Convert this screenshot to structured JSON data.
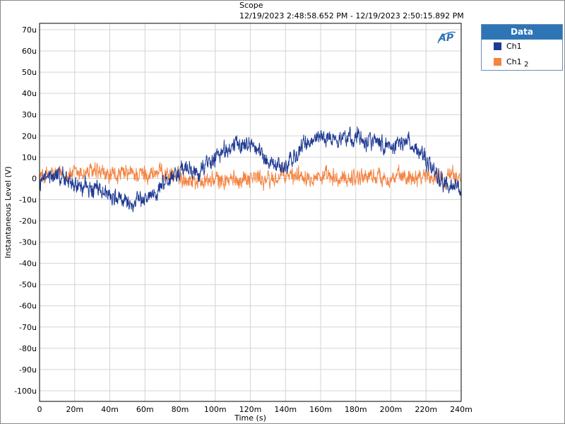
{
  "window": {
    "title": "Scope",
    "time_range": "12/19/2023 2:48:58.652 PM - 12/19/2023 2:50:15.892 PM"
  },
  "brand": {
    "logo_text": "AP"
  },
  "legend": {
    "header": "Data",
    "items": [
      {
        "label": "Ch1",
        "color": "#1f3a93"
      },
      {
        "label": "Ch1 ",
        "suffix": "2",
        "color": "#f58442"
      }
    ]
  },
  "chart_data": {
    "type": "line",
    "title": "Scope",
    "subtitle": "12/19/2023 2:48:58.652 PM - 12/19/2023 2:50:15.892 PM",
    "xlabel": "Time (s)",
    "ylabel": "Instantaneous Level (V)",
    "xlim": [
      0,
      0.24
    ],
    "ylim": [
      -0.000105,
      7.3e-05
    ],
    "xticks": [
      0,
      0.02,
      0.04,
      0.06,
      0.08,
      0.1,
      0.12,
      0.14,
      0.16,
      0.18,
      0.2,
      0.22,
      0.24
    ],
    "xtick_labels": [
      "0",
      "20m",
      "40m",
      "60m",
      "80m",
      "100m",
      "120m",
      "140m",
      "160m",
      "180m",
      "200m",
      "220m",
      "240m"
    ],
    "yticks": [
      7e-05,
      6e-05,
      5e-05,
      4e-05,
      3e-05,
      2e-05,
      1e-05,
      0,
      -1e-05,
      -2e-05,
      -3e-05,
      -4e-05,
      -5e-05,
      -6e-05,
      -7e-05,
      -8e-05,
      -9e-05,
      -0.0001
    ],
    "ytick_labels": [
      "70u",
      "60u",
      "50u",
      "40u",
      "30u",
      "20u",
      "10u",
      "0",
      "-10u",
      "-20u",
      "-30u",
      "-40u",
      "-50u",
      "-60u",
      "-70u",
      "-80u",
      "-90u",
      "-100u"
    ],
    "grid": true,
    "legend_position": "outside-top-right",
    "series": [
      {
        "name": "Ch1",
        "color": "#1f3a93",
        "x": [
          0,
          0.01,
          0.02,
          0.03,
          0.04,
          0.05,
          0.06,
          0.07,
          0.08,
          0.09,
          0.1,
          0.11,
          0.12,
          0.13,
          0.14,
          0.15,
          0.16,
          0.17,
          0.18,
          0.19,
          0.2,
          0.21,
          0.22,
          0.23,
          0.24
        ],
        "y": [
          -2e-06,
          2e-06,
          -3e-06,
          -5e-06,
          -7e-06,
          -1.2e-05,
          -1e-05,
          -3e-06,
          4e-06,
          3e-06,
          1e-05,
          1.5e-05,
          1.7e-05,
          8e-06,
          5e-06,
          1.5e-05,
          2e-05,
          1.8e-05,
          2e-05,
          1.8e-05,
          1.5e-05,
          1.8e-05,
          8e-06,
          -2e-06,
          -5e-06
        ],
        "noise_amplitude": 4e-06
      },
      {
        "name": "Ch1 2",
        "color": "#f58442",
        "x": [
          0,
          0.01,
          0.02,
          0.03,
          0.04,
          0.05,
          0.06,
          0.07,
          0.08,
          0.09,
          0.1,
          0.11,
          0.12,
          0.13,
          0.14,
          0.15,
          0.16,
          0.17,
          0.18,
          0.19,
          0.2,
          0.21,
          0.22,
          0.23,
          0.24
        ],
        "y": [
          1e-06,
          2e-06,
          2e-06,
          3e-06,
          1e-06,
          2e-06,
          2e-06,
          3e-06,
          5e-07,
          -1e-06,
          -1e-06,
          -1e-06,
          1e-06,
          -1e-06,
          1e-06,
          2e-06,
          1e-06,
          -1e-06,
          1e-06,
          1e-06,
          0,
          1e-06,
          2e-06,
          0,
          1e-06
        ],
        "noise_amplitude": 4e-06
      }
    ]
  }
}
